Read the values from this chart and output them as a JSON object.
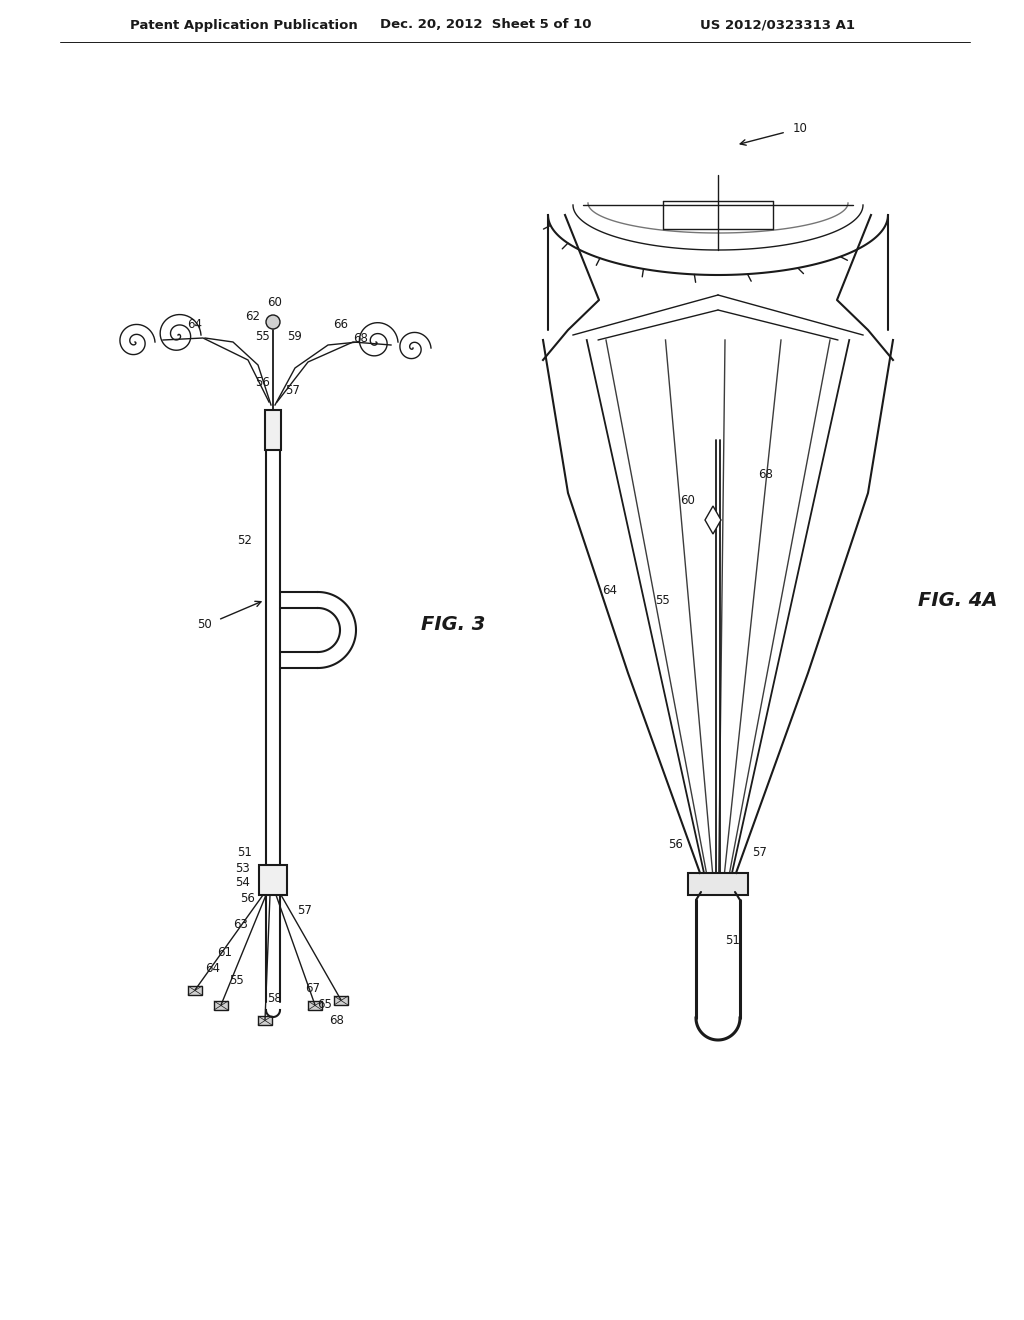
{
  "bg_color": "#ffffff",
  "line_color": "#1a1a1a",
  "header_text": "Patent Application Publication",
  "header_date": "Dec. 20, 2012  Sheet 5 of 10",
  "header_patent": "US 2012/0323313 A1",
  "fig3_label": "FIG. 3",
  "fig4a_label": "FIG. 4A"
}
